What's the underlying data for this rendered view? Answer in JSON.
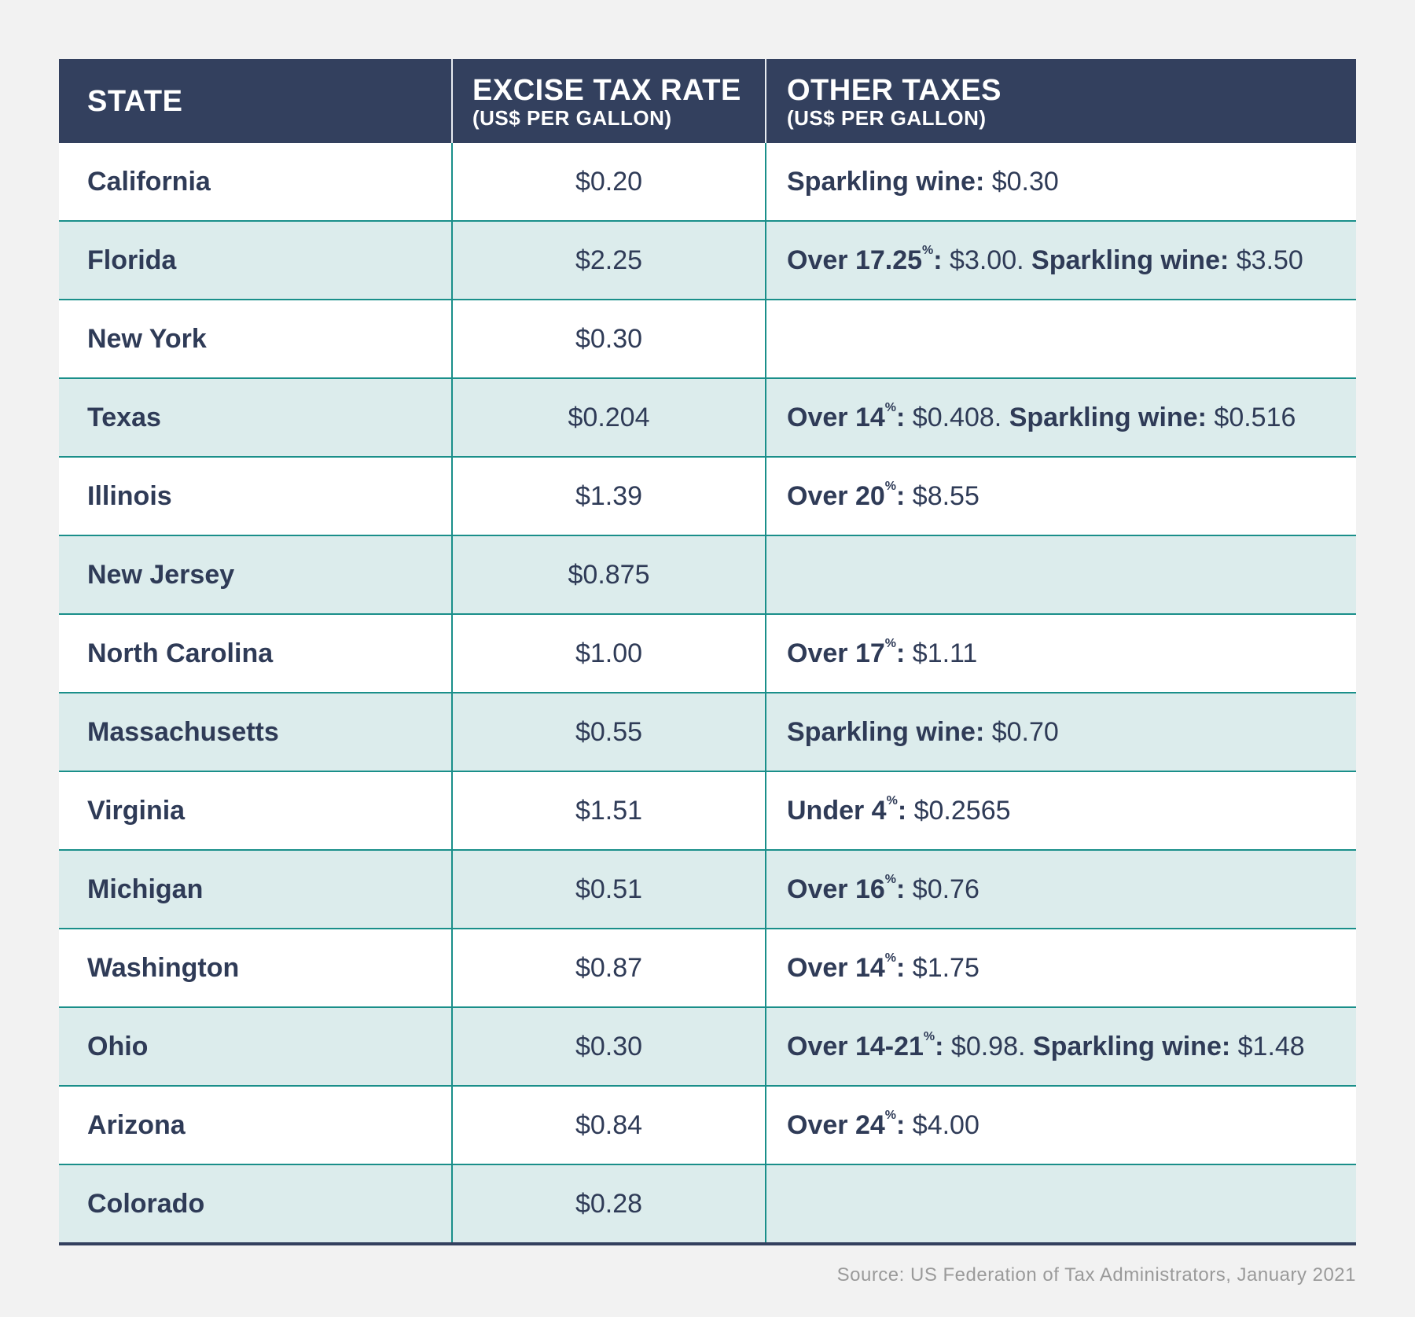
{
  "chart_data": {
    "type": "table",
    "columns": [
      {
        "title": "STATE",
        "subtitle": ""
      },
      {
        "title": "EXCISE TAX RATE",
        "subtitle": "(US$ PER GALLON)"
      },
      {
        "title": "OTHER TAXES",
        "subtitle": "(US$ PER GALLON)"
      }
    ],
    "rows": [
      {
        "state": "California",
        "excise": "$0.20",
        "other": [
          {
            "label": "Sparkling wine:",
            "pct": "",
            "value": "$0.30",
            "sep": ""
          }
        ]
      },
      {
        "state": "Florida",
        "excise": "$2.25",
        "other": [
          {
            "label": "Over 17.25",
            "pct": "%",
            "value": "$3.00.",
            "sep": ":"
          },
          {
            "label": "Sparkling wine:",
            "pct": "",
            "value": "$3.50",
            "sep": ""
          }
        ]
      },
      {
        "state": "New York",
        "excise": "$0.30",
        "other": []
      },
      {
        "state": "Texas",
        "excise": "$0.204",
        "other": [
          {
            "label": "Over 14",
            "pct": "%",
            "value": "$0.408.",
            "sep": ":"
          },
          {
            "label": "Sparkling wine:",
            "pct": "",
            "value": "$0.516",
            "sep": ""
          }
        ]
      },
      {
        "state": "Illinois",
        "excise": "$1.39",
        "other": [
          {
            "label": "Over 20",
            "pct": "%",
            "value": "$8.55",
            "sep": ":"
          }
        ]
      },
      {
        "state": "New Jersey",
        "excise": "$0.875",
        "other": []
      },
      {
        "state": "North Carolina",
        "excise": "$1.00",
        "other": [
          {
            "label": "Over 17",
            "pct": "%",
            "value": "$1.11",
            "sep": ":"
          }
        ]
      },
      {
        "state": "Massachusetts",
        "excise": "$0.55",
        "other": [
          {
            "label": "Sparkling wine:",
            "pct": "",
            "value": "$0.70",
            "sep": ""
          }
        ]
      },
      {
        "state": "Virginia",
        "excise": "$1.51",
        "other": [
          {
            "label": "Under 4",
            "pct": "%",
            "value": "$0.2565",
            "sep": ":"
          }
        ]
      },
      {
        "state": "Michigan",
        "excise": "$0.51",
        "other": [
          {
            "label": "Over 16",
            "pct": "%",
            "value": "$0.76",
            "sep": ":"
          }
        ]
      },
      {
        "state": "Washington",
        "excise": "$0.87",
        "other": [
          {
            "label": "Over 14",
            "pct": "%",
            "value": "$1.75",
            "sep": ":"
          }
        ]
      },
      {
        "state": "Ohio",
        "excise": "$0.30",
        "other": [
          {
            "label": "Over 14-21",
            "pct": "%",
            "value": "$0.98.",
            "sep": ":"
          },
          {
            "label": "Sparkling wine:",
            "pct": "",
            "value": "$1.48",
            "sep": ""
          }
        ]
      },
      {
        "state": "Arizona",
        "excise": "$0.84",
        "other": [
          {
            "label": "Over 24",
            "pct": "%",
            "value": "$4.00",
            "sep": ":"
          }
        ]
      },
      {
        "state": "Colorado",
        "excise": "$0.28",
        "other": []
      }
    ],
    "source": "Source: US Federation of Tax Administrators, January 2021"
  },
  "colors": {
    "header_bg": "#33405e",
    "text": "#2f3b57",
    "row_alt_bg": "#dcecec",
    "grid_line": "#1a8f8a",
    "source_text": "#9a9a9a",
    "page_bg": "#f2f2f2"
  }
}
